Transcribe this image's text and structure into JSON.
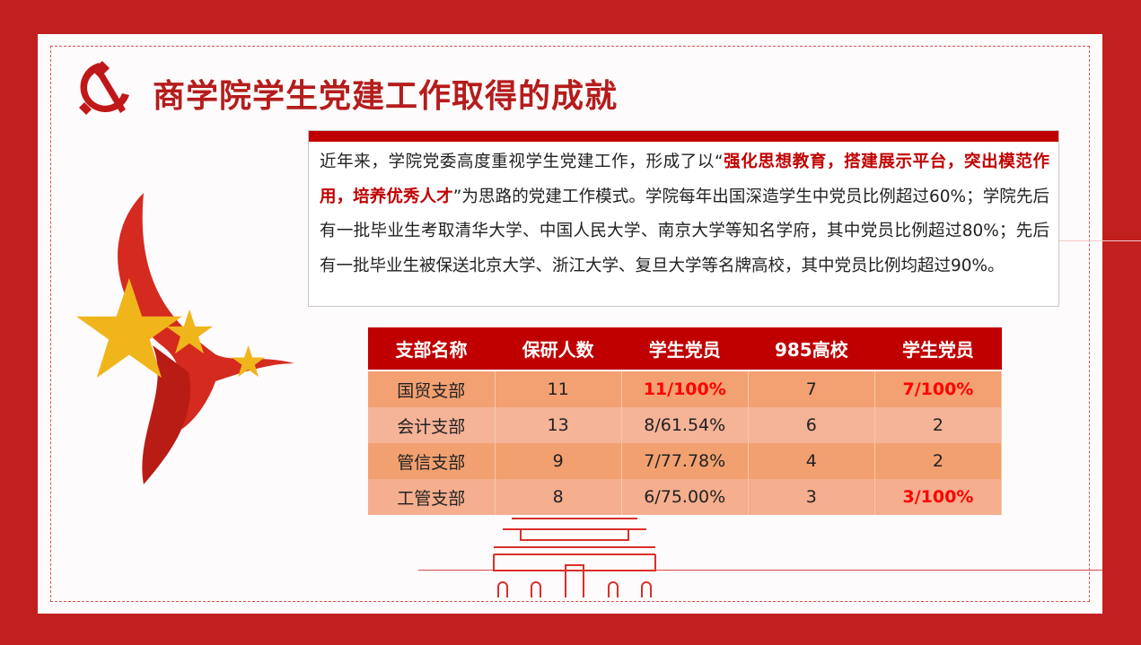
{
  "title": "商学院学生党建工作取得的成就",
  "intro": {
    "p1": "近年来，学院党委高度重视学生党建工作，形成了以“",
    "highlight": "强化思想教育，搭建展示平台，突出模范作用，培养优秀人才",
    "p2": "”为思路的党建工作模式。学院每年出国深造学生中党员比例超过60%；学院先后有一批毕业生考取清华大学、中国人民大学、南京大学等知名学府，其中党员比例超过80%；先后有一批毕业生被保送北京大学、浙江大学、复旦大学等名牌高校，其中党员比例均超过90%。"
  },
  "table": {
    "headers": [
      "支部名称",
      "保研人数",
      "学生党员",
      "985高校",
      "学生党员"
    ],
    "rows": [
      {
        "cells": [
          "国贸支部",
          "11",
          "11/100%",
          "7",
          "7/100%"
        ],
        "red": [
          2,
          4
        ]
      },
      {
        "cells": [
          "会计支部",
          "13",
          "8/61.54%",
          "6",
          "2"
        ],
        "red": []
      },
      {
        "cells": [
          "管信支部",
          "9",
          "7/77.78%",
          "4",
          "2"
        ],
        "red": []
      },
      {
        "cells": [
          "工管支部",
          "8",
          "6/75.00%",
          "3",
          "3/100%"
        ],
        "red": [
          4
        ]
      }
    ]
  },
  "colors": {
    "frame": "#c1201f",
    "header": "#c00000",
    "highlight": "#ff0000"
  },
  "icons": [
    "hammer-sickle-icon",
    "star-icon",
    "ribbon-icon",
    "tiananmen-icon"
  ]
}
